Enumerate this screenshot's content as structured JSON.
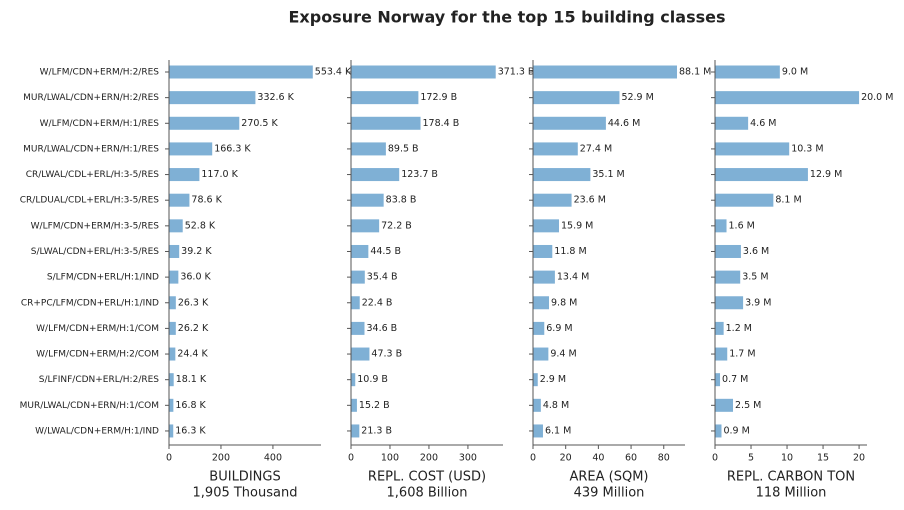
{
  "title": "Exposure Norway for the top 15 building classes",
  "categories": [
    "W/LFM/CDN+ERM/H:2/RES",
    "MUR/LWAL/CDN+ERN/H:2/RES",
    "W/LFM/CDN+ERM/H:1/RES",
    "MUR/LWAL/CDN+ERN/H:1/RES",
    "CR/LWAL/CDL+ERL/H:3-5/RES",
    "CR/LDUAL/CDL+ERL/H:3-5/RES",
    "W/LFM/CDN+ERM/H:3-5/RES",
    "S/LWAL/CDN+ERL/H:3-5/RES",
    "S/LFM/CDN+ERL/H:1/IND",
    "CR+PC/LFM/CDN+ERL/H:1/IND",
    "W/LFM/CDN+ERM/H:1/COM",
    "W/LFM/CDN+ERM/H:2/COM",
    "S/LFINF/CDN+ERL/H:2/RES",
    "MUR/LWAL/CDN+ERN/H:1/COM",
    "W/LWAL/CDN+ERM/H:1/IND"
  ],
  "chart_data": [
    {
      "type": "barh",
      "xlabel": "BUILDINGS",
      "xlabel_total": "1,905 Thousand",
      "color": "#7fb0d5",
      "values": [
        553.4,
        332.6,
        270.5,
        166.3,
        117.0,
        78.6,
        52.8,
        39.2,
        36.0,
        26.3,
        26.2,
        24.4,
        18.1,
        16.8,
        16.3
      ],
      "value_labels": [
        "553.4 K",
        "332.6 K",
        "270.5 K",
        "166.3 K",
        "117.0 K",
        "78.6 K",
        "52.8 K",
        "39.2 K",
        "36.0 K",
        "26.3 K",
        "26.2 K",
        "24.4 K",
        "18.1 K",
        "16.8 K",
        "16.3 K"
      ],
      "xlim": [
        0,
        585
      ],
      "xticks": [
        0,
        200,
        400
      ]
    },
    {
      "type": "barh",
      "xlabel": "REPL. COST (USD)",
      "xlabel_total": "1,608 Billion",
      "color": "#7fb0d5",
      "values": [
        371.3,
        172.9,
        178.4,
        89.5,
        123.7,
        83.8,
        72.2,
        44.5,
        35.4,
        22.4,
        34.6,
        47.3,
        10.9,
        15.2,
        21.3
      ],
      "value_labels": [
        "371.3 B",
        "172.9 B",
        "178.4 B",
        "89.5 B",
        "123.7 B",
        "83.8 B",
        "72.2 B",
        "44.5 B",
        "35.4 B",
        "22.4 B",
        "34.6 B",
        "47.3 B",
        "10.9 B",
        "15.2 B",
        "21.3 B"
      ],
      "xlim": [
        0,
        390
      ],
      "xticks": [
        0,
        100,
        200,
        300
      ]
    },
    {
      "type": "barh",
      "xlabel": "AREA (SQM)",
      "xlabel_total": "439 Million",
      "color": "#7fb0d5",
      "values": [
        88.1,
        52.9,
        44.6,
        27.4,
        35.1,
        23.6,
        15.9,
        11.8,
        13.4,
        9.8,
        6.9,
        9.4,
        2.9,
        4.8,
        6.1
      ],
      "value_labels": [
        "88.1 M",
        "52.9 M",
        "44.6 M",
        "27.4 M",
        "35.1 M",
        "23.6 M",
        "15.9 M",
        "11.8 M",
        "13.4 M",
        "9.8 M",
        "6.9 M",
        "9.4 M",
        "2.9 M",
        "4.8 M",
        "6.1 M"
      ],
      "xlim": [
        0,
        93
      ],
      "xticks": [
        0,
        20,
        40,
        60,
        80
      ]
    },
    {
      "type": "barh",
      "xlabel": "REPL. CARBON TON",
      "xlabel_total": "118 Million",
      "color": "#7fb0d5",
      "values": [
        9.0,
        20.0,
        4.6,
        10.3,
        12.9,
        8.1,
        1.6,
        3.6,
        3.5,
        3.9,
        1.2,
        1.7,
        0.7,
        2.5,
        0.9
      ],
      "value_labels": [
        "9.0 M",
        "20.0 M",
        "4.6 M",
        "10.3 M",
        "12.9 M",
        "8.1 M",
        "1.6 M",
        "3.6 M",
        "3.5 M",
        "3.9 M",
        "1.2 M",
        "1.7 M",
        "0.7 M",
        "2.5 M",
        "0.9 M"
      ],
      "xlim": [
        0,
        21.1
      ],
      "xticks": [
        0,
        5,
        10,
        15,
        20
      ]
    }
  ]
}
